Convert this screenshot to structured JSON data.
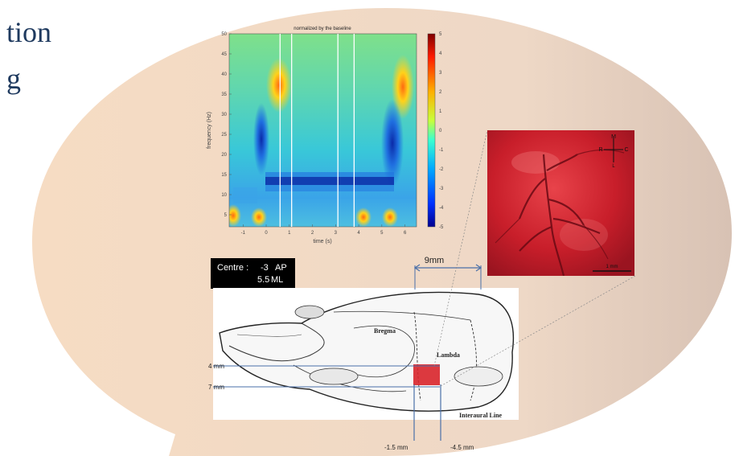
{
  "title": {
    "line1": "tion",
    "line2": "g"
  },
  "spectrogram": {
    "title": "normalized by the baseline",
    "xlabel": "time (s)",
    "ylabel": "frequency (Hz)",
    "x_ticks": [
      "-1",
      "0",
      "1",
      "2",
      "3",
      "4",
      "5",
      "6"
    ],
    "y_ticks": [
      "5",
      "10",
      "15",
      "20",
      "25",
      "30",
      "35",
      "40",
      "45",
      "50"
    ],
    "colorbar_ticks": [
      "5",
      "4",
      "3",
      "2",
      "1",
      "0",
      "-1",
      "-2",
      "-3",
      "-4",
      "-5"
    ]
  },
  "chart_data": {
    "type": "heatmap",
    "title": "normalized by the baseline",
    "xlabel": "time (s)",
    "ylabel": "frequency (Hz)",
    "xlim": [
      -1.6,
      6.5
    ],
    "ylim": [
      2,
      50
    ],
    "clim": [
      -5,
      5
    ],
    "x_ticks": [
      -1,
      0,
      1,
      2,
      3,
      4,
      5,
      6
    ],
    "y_ticks": [
      5,
      10,
      15,
      20,
      25,
      30,
      35,
      40,
      45,
      50
    ],
    "event_lines_s": [
      0.6,
      1.1,
      3.1,
      3.8
    ]
  },
  "centre": {
    "label": "Centre :",
    "ap_value": "-3",
    "ap_unit": "AP",
    "ml_value": "5.5",
    "ml_unit": "ML"
  },
  "skull": {
    "bregma": "Bregma",
    "lambda": "Lambda",
    "interaural": "Interaural Line",
    "width_label": "9mm",
    "y_label_top": "4 mm",
    "y_label_bottom": "7 mm",
    "x_label_left": "-1.5 mm",
    "x_label_right": "-4.5 mm"
  },
  "photo": {
    "orient_m": "M",
    "orient_r": "R",
    "orient_c": "C",
    "orient_l": "L",
    "scale_label": "1 mm"
  },
  "colors": {
    "bubble": "#f4dcc4",
    "title": "#1f3a5f",
    "guide_lines": "#4a6fa8"
  }
}
